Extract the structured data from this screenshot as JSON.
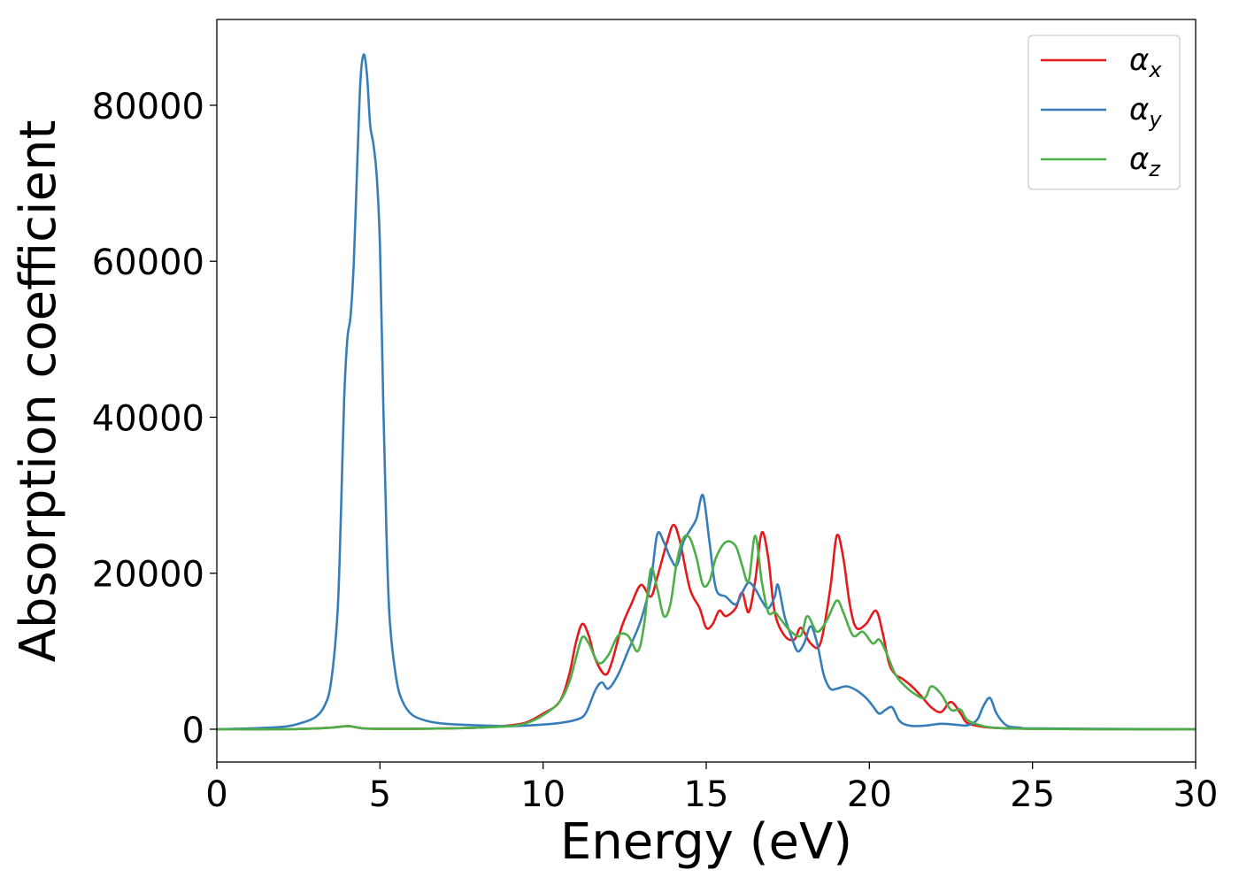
{
  "chart_data": {
    "type": "line",
    "title": "",
    "xlabel": "Energy (eV)",
    "ylabel": "Absorption coefficient",
    "xlim": [
      0,
      30
    ],
    "ylim": [
      -4200,
      91000
    ],
    "xticks": [
      "0",
      "5",
      "10",
      "15",
      "20",
      "25",
      "30"
    ],
    "yticks": [
      "0",
      "20000",
      "40000",
      "60000",
      "80000"
    ],
    "grid": false,
    "legend_position": "top-right",
    "series": [
      {
        "name": "α",
        "subscript": "x",
        "color": "#e41a1c",
        "x": [
          0,
          2,
          3,
          3.5,
          4,
          4.2,
          4.5,
          5,
          6,
          7,
          8,
          9,
          9.5,
          10,
          10.5,
          10.8,
          11,
          11.2,
          11.4,
          11.6,
          11.9,
          12.1,
          12.4,
          12.7,
          13,
          13.3,
          13.5,
          13.8,
          14,
          14.2,
          14.5,
          14.8,
          15,
          15.2,
          15.4,
          15.6,
          15.9,
          16.1,
          16.3,
          16.5,
          16.7,
          16.9,
          17.1,
          17.4,
          17.7,
          17.9,
          18.2,
          18.5,
          18.8,
          19.0,
          19.2,
          19.4,
          19.6,
          19.9,
          20.2,
          20.4,
          20.6,
          20.8,
          21.0,
          21.3,
          21.6,
          21.9,
          22.2,
          22.5,
          22.8,
          23.0,
          23.5,
          24,
          25,
          27,
          30
        ],
        "y": [
          0,
          0,
          100,
          200,
          400,
          300,
          100,
          50,
          50,
          100,
          200,
          500,
          900,
          2000,
          3500,
          7000,
          11000,
          13500,
          12000,
          9000,
          7000,
          8500,
          13000,
          16000,
          18500,
          17000,
          19500,
          24000,
          26200,
          24000,
          18000,
          15500,
          13000,
          13500,
          15200,
          14500,
          15500,
          17500,
          15000,
          19000,
          25200,
          22000,
          15000,
          12000,
          11500,
          13000,
          11000,
          11000,
          18000,
          24800,
          22000,
          16000,
          13000,
          13500,
          15200,
          12500,
          8500,
          7000,
          6500,
          5500,
          4200,
          2800,
          2200,
          3500,
          2000,
          800,
          300,
          150,
          50,
          0,
          0
        ]
      },
      {
        "name": "α",
        "subscript": "y",
        "color": "#377eb8",
        "x": [
          0,
          1,
          2,
          2.5,
          3,
          3.3,
          3.5,
          3.7,
          3.8,
          3.9,
          4.0,
          4.1,
          4.2,
          4.3,
          4.4,
          4.5,
          4.6,
          4.7,
          4.8,
          4.9,
          5.0,
          5.1,
          5.2,
          5.3,
          5.5,
          5.7,
          6.0,
          6.5,
          7,
          8,
          9,
          10,
          10.5,
          11,
          11.3,
          11.6,
          11.8,
          12,
          12.3,
          12.6,
          13,
          13.3,
          13.5,
          13.7,
          13.9,
          14.1,
          14.3,
          14.5,
          14.7,
          14.9,
          15.1,
          15.3,
          15.6,
          15.9,
          16.1,
          16.3,
          16.5,
          16.7,
          16.9,
          17.1,
          17.2,
          17.4,
          17.6,
          17.8,
          18.0,
          18.2,
          18.4,
          18.6,
          18.8,
          19.0,
          19.3,
          19.6,
          19.9,
          20.1,
          20.3,
          20.5,
          20.7,
          20.9,
          21.1,
          21.4,
          21.8,
          22.2,
          22.6,
          23.0,
          23.3,
          23.5,
          23.7,
          23.9,
          24.2,
          24.6,
          25,
          27,
          30
        ],
        "y": [
          0,
          100,
          300,
          700,
          1500,
          3000,
          6000,
          15000,
          27000,
          42000,
          50000,
          53000,
          60000,
          72000,
          83000,
          86500,
          84000,
          77500,
          75000,
          71000,
          62000,
          42000,
          25000,
          14000,
          6500,
          3500,
          1800,
          1000,
          700,
          500,
          400,
          600,
          800,
          1200,
          2000,
          5000,
          6000,
          5200,
          7000,
          10000,
          14000,
          19000,
          25000,
          24000,
          22000,
          21000,
          24000,
          25500,
          27000,
          30000,
          24000,
          18000,
          17000,
          16000,
          17500,
          18800,
          18000,
          16500,
          15500,
          17000,
          18500,
          14500,
          12000,
          10000,
          11000,
          13200,
          11000,
          7000,
          5200,
          5200,
          5500,
          5000,
          4000,
          3000,
          2000,
          2500,
          2800,
          1200,
          600,
          400,
          500,
          700,
          600,
          500,
          1200,
          3000,
          4000,
          2000,
          500,
          200,
          100,
          50,
          0
        ]
      },
      {
        "name": "α",
        "subscript": "z",
        "color": "#4daf4a",
        "x": [
          0,
          2,
          3,
          3.5,
          4,
          4.2,
          4.5,
          5,
          6,
          7,
          8,
          9,
          9.5,
          10,
          10.5,
          10.8,
          11,
          11.2,
          11.4,
          11.7,
          12.0,
          12.3,
          12.6,
          12.9,
          13.1,
          13.3,
          13.5,
          13.7,
          13.9,
          14.1,
          14.3,
          14.5,
          14.7,
          14.9,
          15.1,
          15.3,
          15.6,
          15.9,
          16.1,
          16.3,
          16.5,
          16.7,
          16.9,
          17.1,
          17.3,
          17.6,
          17.9,
          18.1,
          18.4,
          18.7,
          19.0,
          19.2,
          19.5,
          19.8,
          20.1,
          20.3,
          20.5,
          20.8,
          21.1,
          21.4,
          21.7,
          21.9,
          22.2,
          22.5,
          22.8,
          23.0,
          23.5,
          24,
          25,
          27,
          30
        ],
        "y": [
          0,
          0,
          100,
          200,
          400,
          300,
          100,
          50,
          50,
          100,
          200,
          400,
          800,
          1800,
          3500,
          6000,
          9000,
          11800,
          11000,
          8500,
          9500,
          12000,
          12000,
          10000,
          13500,
          20500,
          18000,
          14500,
          16000,
          21500,
          24500,
          24500,
          22000,
          18500,
          19000,
          22000,
          24000,
          23500,
          21000,
          19000,
          24800,
          19000,
          15000,
          15000,
          14000,
          12500,
          12000,
          14500,
          12500,
          14000,
          16500,
          15000,
          12000,
          12500,
          11000,
          11500,
          10000,
          7000,
          5500,
          4500,
          4000,
          5500,
          4500,
          2500,
          2500,
          1200,
          400,
          150,
          50,
          0,
          0
        ]
      }
    ]
  }
}
